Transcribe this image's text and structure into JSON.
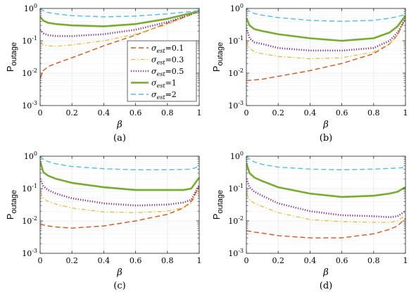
{
  "chart_data": [
    {
      "type": "line",
      "caption": "(a)",
      "xlabel": "β",
      "ylabel": "P",
      "ylabel_sub": "outage",
      "xlim": [
        0,
        1
      ],
      "ylim": [
        0.001,
        1
      ],
      "yscale": "log",
      "grid": true,
      "xticks": [
        "0",
        "0.2",
        "0.4",
        "0.6",
        "0.8",
        "1"
      ],
      "yticks": [
        {
          "base": "10",
          "exp": "0"
        },
        {
          "base": "10",
          "exp": "-1"
        },
        {
          "base": "10",
          "exp": "-2"
        },
        {
          "base": "10",
          "exp": "-3"
        }
      ],
      "legend_position": "center-right",
      "series": [
        {
          "sym": "σ",
          "sub": "est",
          "val": "=0.1",
          "color": "#d95319",
          "style": "dashed",
          "x": [
            0,
            0.02,
            0.05,
            0.1,
            0.2,
            0.4,
            0.6,
            0.8,
            1.0
          ],
          "y": [
            0.007,
            0.012,
            0.016,
            0.02,
            0.03,
            0.07,
            0.15,
            0.35,
            0.8
          ]
        },
        {
          "sym": "σ",
          "sub": "est",
          "val": "=0.3",
          "color": "#edb120",
          "style": "dashdot",
          "x": [
            0,
            0.02,
            0.05,
            0.1,
            0.2,
            0.4,
            0.6,
            0.8,
            1.0
          ],
          "y": [
            0.09,
            0.075,
            0.07,
            0.068,
            0.075,
            0.1,
            0.16,
            0.32,
            0.8
          ]
        },
        {
          "sym": "σ",
          "sub": "est",
          "val": "=0.5",
          "color": "#7e2f8e",
          "style": "dotted",
          "x": [
            0,
            0.02,
            0.05,
            0.1,
            0.2,
            0.4,
            0.6,
            0.8,
            1.0
          ],
          "y": [
            0.22,
            0.17,
            0.15,
            0.14,
            0.14,
            0.16,
            0.22,
            0.38,
            0.8
          ]
        },
        {
          "sym": "σ",
          "sub": "est",
          "val": "=1",
          "color": "#77ac30",
          "style": "solid",
          "x": [
            0,
            0.02,
            0.05,
            0.1,
            0.2,
            0.4,
            0.6,
            0.8,
            1.0
          ],
          "y": [
            0.55,
            0.42,
            0.36,
            0.33,
            0.3,
            0.28,
            0.33,
            0.48,
            0.82
          ]
        },
        {
          "sym": "σ",
          "sub": "est",
          "val": "=2",
          "color": "#4dbeee",
          "style": "dashed",
          "x": [
            0,
            0.02,
            0.05,
            0.1,
            0.2,
            0.4,
            0.6,
            0.8,
            1.0
          ],
          "y": [
            1.0,
            0.85,
            0.75,
            0.68,
            0.6,
            0.55,
            0.58,
            0.68,
            0.85
          ]
        }
      ]
    },
    {
      "type": "line",
      "caption": "(b)",
      "xlabel": "β",
      "ylabel": "P",
      "ylabel_sub": "outage",
      "xlim": [
        0,
        1
      ],
      "ylim": [
        0.001,
        1
      ],
      "yscale": "log",
      "grid": true,
      "xticks": [
        "0",
        "0.2",
        "0.4",
        "0.6",
        "0.8",
        "1"
      ],
      "yticks": [
        {
          "base": "10",
          "exp": "0"
        },
        {
          "base": "10",
          "exp": "-1"
        },
        {
          "base": "10",
          "exp": "-2"
        },
        {
          "base": "10",
          "exp": "-3"
        }
      ],
      "series": [
        {
          "color": "#d95319",
          "style": "dashed",
          "x": [
            0,
            0.02,
            0.05,
            0.1,
            0.2,
            0.4,
            0.6,
            0.8,
            0.9,
            0.95,
            1.0
          ],
          "y": [
            0.006,
            0.006,
            0.0062,
            0.0065,
            0.008,
            0.012,
            0.02,
            0.04,
            0.08,
            0.15,
            0.5
          ]
        },
        {
          "color": "#edb120",
          "style": "dashdot",
          "x": [
            0,
            0.02,
            0.05,
            0.1,
            0.2,
            0.4,
            0.6,
            0.8,
            0.9,
            0.95,
            1.0
          ],
          "y": [
            0.1,
            0.06,
            0.045,
            0.04,
            0.033,
            0.028,
            0.03,
            0.045,
            0.08,
            0.15,
            0.5
          ]
        },
        {
          "color": "#7e2f8e",
          "style": "dotted",
          "x": [
            0,
            0.02,
            0.05,
            0.1,
            0.2,
            0.4,
            0.6,
            0.8,
            0.9,
            0.95,
            1.0
          ],
          "y": [
            0.25,
            0.12,
            0.09,
            0.08,
            0.06,
            0.05,
            0.05,
            0.06,
            0.1,
            0.18,
            0.5
          ]
        },
        {
          "color": "#77ac30",
          "style": "solid",
          "x": [
            0,
            0.02,
            0.05,
            0.1,
            0.2,
            0.4,
            0.6,
            0.8,
            0.9,
            0.95,
            1.0
          ],
          "y": [
            0.5,
            0.3,
            0.23,
            0.2,
            0.16,
            0.12,
            0.1,
            0.12,
            0.18,
            0.28,
            0.6
          ]
        },
        {
          "color": "#4dbeee",
          "style": "dashed",
          "x": [
            0,
            0.02,
            0.05,
            0.1,
            0.2,
            0.4,
            0.6,
            0.8,
            0.9,
            0.95,
            1.0
          ],
          "y": [
            1.0,
            0.8,
            0.7,
            0.62,
            0.52,
            0.43,
            0.4,
            0.43,
            0.5,
            0.56,
            0.65
          ]
        }
      ]
    },
    {
      "type": "line",
      "caption": "(c)",
      "xlabel": "β",
      "ylabel": "P",
      "ylabel_sub": "outage",
      "xlim": [
        0,
        1
      ],
      "ylim": [
        0.001,
        1
      ],
      "yscale": "log",
      "grid": true,
      "xticks": [
        "0",
        "0.2",
        "0.4",
        "0.6",
        "0.8",
        "1"
      ],
      "yticks": [
        {
          "base": "10",
          "exp": "0"
        },
        {
          "base": "10",
          "exp": "-1"
        },
        {
          "base": "10",
          "exp": "-2"
        },
        {
          "base": "10",
          "exp": "-3"
        }
      ],
      "series": [
        {
          "color": "#d95319",
          "style": "dashed",
          "x": [
            0,
            0.02,
            0.05,
            0.1,
            0.2,
            0.4,
            0.6,
            0.8,
            0.9,
            0.95,
            1.0
          ],
          "y": [
            0.008,
            0.0075,
            0.007,
            0.0065,
            0.006,
            0.007,
            0.01,
            0.016,
            0.025,
            0.04,
            0.12
          ]
        },
        {
          "color": "#edb120",
          "style": "dashdot",
          "x": [
            0,
            0.02,
            0.05,
            0.1,
            0.2,
            0.4,
            0.6,
            0.8,
            0.9,
            0.95,
            1.0
          ],
          "y": [
            0.08,
            0.05,
            0.04,
            0.033,
            0.025,
            0.019,
            0.018,
            0.02,
            0.026,
            0.035,
            0.1
          ]
        },
        {
          "color": "#7e2f8e",
          "style": "dotted",
          "x": [
            0,
            0.02,
            0.05,
            0.1,
            0.2,
            0.4,
            0.6,
            0.8,
            0.9,
            0.95,
            1.0
          ],
          "y": [
            0.2,
            0.12,
            0.09,
            0.07,
            0.05,
            0.035,
            0.03,
            0.032,
            0.037,
            0.045,
            0.13
          ]
        },
        {
          "color": "#77ac30",
          "style": "solid",
          "x": [
            0,
            0.02,
            0.05,
            0.1,
            0.2,
            0.4,
            0.6,
            0.8,
            0.9,
            0.95,
            1.0
          ],
          "y": [
            0.7,
            0.32,
            0.25,
            0.2,
            0.15,
            0.11,
            0.09,
            0.09,
            0.09,
            0.1,
            0.22
          ]
        },
        {
          "color": "#4dbeee",
          "style": "dashed",
          "x": [
            0,
            0.02,
            0.05,
            0.1,
            0.2,
            0.4,
            0.6,
            0.8,
            0.9,
            0.95,
            1.0
          ],
          "y": [
            1.0,
            0.8,
            0.68,
            0.58,
            0.48,
            0.41,
            0.38,
            0.38,
            0.39,
            0.4,
            0.48
          ]
        }
      ]
    },
    {
      "type": "line",
      "caption": "(d)",
      "xlabel": "β",
      "ylabel": "P",
      "ylabel_sub": "outage",
      "xlim": [
        0,
        1
      ],
      "ylim": [
        0.001,
        1
      ],
      "yscale": "log",
      "grid": true,
      "xticks": [
        "0",
        "0.2",
        "0.4",
        "0.6",
        "0.8",
        "1"
      ],
      "yticks": [
        {
          "base": "10",
          "exp": "0"
        },
        {
          "base": "10",
          "exp": "-1"
        },
        {
          "base": "10",
          "exp": "-2"
        },
        {
          "base": "10",
          "exp": "-3"
        }
      ],
      "series": [
        {
          "color": "#d95319",
          "style": "dashed",
          "x": [
            0,
            0.02,
            0.05,
            0.1,
            0.2,
            0.4,
            0.6,
            0.8,
            0.9,
            0.95,
            1.0
          ],
          "y": [
            0.005,
            0.0048,
            0.0045,
            0.0042,
            0.0035,
            0.003,
            0.003,
            0.004,
            0.0055,
            0.007,
            0.012
          ]
        },
        {
          "color": "#edb120",
          "style": "dashdot",
          "x": [
            0,
            0.02,
            0.05,
            0.1,
            0.2,
            0.4,
            0.6,
            0.8,
            0.9,
            0.95,
            1.0
          ],
          "y": [
            0.07,
            0.045,
            0.035,
            0.028,
            0.018,
            0.011,
            0.0095,
            0.009,
            0.009,
            0.01,
            0.015
          ]
        },
        {
          "color": "#7e2f8e",
          "style": "dotted",
          "x": [
            0,
            0.02,
            0.05,
            0.1,
            0.2,
            0.4,
            0.6,
            0.8,
            0.9,
            0.95,
            1.0
          ],
          "y": [
            0.2,
            0.11,
            0.08,
            0.06,
            0.035,
            0.02,
            0.015,
            0.014,
            0.013,
            0.014,
            0.02
          ]
        },
        {
          "color": "#77ac30",
          "style": "solid",
          "x": [
            0,
            0.02,
            0.05,
            0.1,
            0.2,
            0.4,
            0.6,
            0.8,
            0.9,
            0.95,
            1.0
          ],
          "y": [
            0.6,
            0.3,
            0.22,
            0.17,
            0.11,
            0.07,
            0.055,
            0.06,
            0.07,
            0.08,
            0.11
          ]
        },
        {
          "color": "#4dbeee",
          "style": "dashed",
          "x": [
            0,
            0.02,
            0.05,
            0.1,
            0.2,
            0.4,
            0.6,
            0.8,
            0.9,
            0.95,
            1.0
          ],
          "y": [
            1.0,
            0.8,
            0.66,
            0.56,
            0.46,
            0.4,
            0.38,
            0.4,
            0.42,
            0.43,
            0.45
          ]
        }
      ]
    }
  ]
}
